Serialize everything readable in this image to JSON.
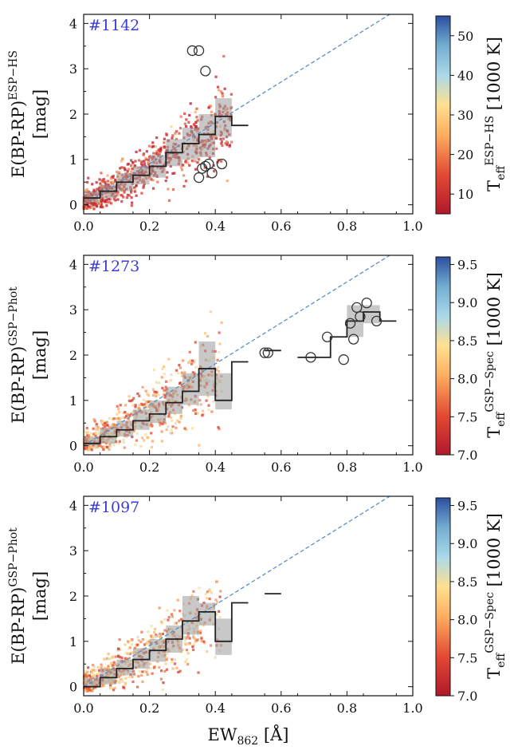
{
  "chart_data": [
    {
      "type": "scatter",
      "id_label": "#1142",
      "ylabel_main": "E(BP-RP)",
      "ylabel_sup": "ESP−HS",
      "ylabel_unit": "[mag]",
      "xlim": [
        0,
        1.0
      ],
      "ylim": [
        -0.2,
        4.2
      ],
      "xticks": [
        "0.0",
        "0.2",
        "0.4",
        "0.6",
        "0.8",
        "1.0"
      ],
      "yticks": [
        "0",
        "1",
        "2",
        "3",
        "4"
      ],
      "colorbar": {
        "label_main": "T",
        "label_sub": "eff",
        "label_sup": "ESP−HS",
        "label_unit": "[1000 K]",
        "ticks": [
          "10",
          "20",
          "30",
          "40",
          "50"
        ],
        "range": [
          5,
          55
        ]
      },
      "fit_line": {
        "x": [
          0.0,
          0.93
        ],
        "y": [
          0.0,
          4.2
        ]
      },
      "step_x": [
        0.0,
        0.05,
        0.1,
        0.15,
        0.2,
        0.25,
        0.3,
        0.35,
        0.4,
        0.45
      ],
      "step_y": [
        0.15,
        0.3,
        0.5,
        0.65,
        0.85,
        1.15,
        1.35,
        1.55,
        1.95,
        1.75
      ],
      "band_lo": [
        0.05,
        0.15,
        0.3,
        0.45,
        0.6,
        0.85,
        1.0,
        1.05,
        1.5,
        1.75
      ],
      "band_hi": [
        0.3,
        0.45,
        0.7,
        0.85,
        1.1,
        1.45,
        1.7,
        2.0,
        2.35,
        1.75
      ],
      "outliers": {
        "x": [
          0.33,
          0.35,
          0.37,
          0.36,
          0.37,
          0.39,
          0.42,
          0.35,
          0.38
        ],
        "y": [
          3.4,
          3.4,
          2.95,
          0.8,
          0.85,
          0.7,
          0.9,
          0.6,
          0.9
        ]
      },
      "scatter_seed": 11,
      "scatter_n": 700,
      "scatter_xmax": 0.45,
      "scatter_slope": 4.3,
      "scatter_spread": 0.35
    },
    {
      "type": "scatter",
      "id_label": "#1273",
      "ylabel_main": "E(BP-RP)",
      "ylabel_sup": "GSP−Phot",
      "ylabel_unit": "[mag]",
      "xlim": [
        0,
        1.0
      ],
      "ylim": [
        -0.2,
        4.2
      ],
      "xticks": [
        "0.0",
        "0.2",
        "0.4",
        "0.6",
        "0.8",
        "1.0"
      ],
      "yticks": [
        "0",
        "1",
        "2",
        "3",
        "4"
      ],
      "colorbar": {
        "label_main": "T",
        "label_sub": "eff",
        "label_sup": "GSP−Spec",
        "label_unit": "[1000 K]",
        "ticks": [
          "7.0",
          "7.5",
          "8.0",
          "8.5",
          "9.0",
          "9.5"
        ],
        "range": [
          7.0,
          9.6
        ]
      },
      "fit_line": {
        "x": [
          0.0,
          0.93
        ],
        "y": [
          0.0,
          4.2
        ]
      },
      "step_x": [
        0.0,
        0.05,
        0.1,
        0.15,
        0.2,
        0.25,
        0.3,
        0.35,
        0.4,
        0.45,
        0.5,
        0.55,
        0.6,
        0.65,
        0.7,
        0.75,
        0.8,
        0.85,
        0.9
      ],
      "step_y": [
        0.05,
        0.2,
        0.35,
        0.55,
        0.7,
        0.95,
        1.2,
        1.7,
        1.0,
        1.85,
        null,
        2.1,
        null,
        1.95,
        1.95,
        2.4,
        2.75,
        2.95,
        2.75
      ],
      "band_lo": [
        0.0,
        0.05,
        0.2,
        0.35,
        0.5,
        0.7,
        0.9,
        1.1,
        0.8,
        1.85,
        null,
        2.1,
        null,
        1.95,
        1.95,
        2.4,
        2.4,
        2.7,
        2.75
      ],
      "band_hi": [
        0.2,
        0.4,
        0.55,
        0.8,
        1.0,
        1.3,
        1.6,
        2.3,
        1.6,
        1.85,
        null,
        2.1,
        null,
        1.95,
        1.95,
        2.4,
        3.1,
        3.1,
        2.75
      ],
      "outliers": {
        "x": [
          0.55,
          0.56,
          0.69,
          0.74,
          0.79,
          0.81,
          0.83,
          0.82,
          0.86,
          0.84,
          0.89
        ],
        "y": [
          2.05,
          2.05,
          1.95,
          2.4,
          1.9,
          2.7,
          3.05,
          2.35,
          3.15,
          2.85,
          2.75
        ]
      },
      "scatter_seed": 23,
      "scatter_n": 600,
      "scatter_xmax": 0.42,
      "scatter_slope": 4.0,
      "scatter_spread": 0.4
    },
    {
      "type": "scatter",
      "id_label": "#1097",
      "ylabel_main": "E(BP-RP)",
      "ylabel_sup": "GSP−Phot",
      "ylabel_unit": "[mag]",
      "xlim": [
        0,
        1.0
      ],
      "ylim": [
        -0.2,
        4.2
      ],
      "xticks": [
        "0.0",
        "0.2",
        "0.4",
        "0.6",
        "0.8",
        "1.0"
      ],
      "yticks": [
        "0",
        "1",
        "2",
        "3",
        "4"
      ],
      "xlabel_main": "EW",
      "xlabel_sub": "862",
      "xlabel_unit": "[Å]",
      "colorbar": {
        "label_main": "T",
        "label_sub": "eff",
        "label_sup": "GSP−Spec",
        "label_unit": "[1000 K]",
        "ticks": [
          "7.0",
          "7.5",
          "8.0",
          "8.5",
          "9.0",
          "9.5"
        ],
        "range": [
          7.0,
          9.6
        ]
      },
      "fit_line": {
        "x": [
          0.0,
          0.93
        ],
        "y": [
          0.0,
          4.2
        ]
      },
      "step_x": [
        0.0,
        0.05,
        0.1,
        0.15,
        0.2,
        0.25,
        0.3,
        0.35,
        0.4,
        0.45,
        0.5,
        0.55
      ],
      "step_y": [
        0.0,
        0.2,
        0.4,
        0.6,
        0.8,
        1.05,
        1.45,
        1.65,
        1.0,
        1.85,
        null,
        2.05
      ],
      "band_lo": [
        0.0,
        0.05,
        0.25,
        0.4,
        0.55,
        0.75,
        1.15,
        1.35,
        0.7,
        1.85,
        null,
        2.05
      ],
      "band_hi": [
        0.2,
        0.4,
        0.6,
        0.85,
        1.05,
        1.35,
        2.0,
        1.85,
        1.5,
        1.85,
        null,
        2.05
      ],
      "outliers": {
        "x": [],
        "y": []
      },
      "scatter_seed": 37,
      "scatter_n": 560,
      "scatter_xmax": 0.42,
      "scatter_slope": 4.0,
      "scatter_spread": 0.38
    }
  ]
}
